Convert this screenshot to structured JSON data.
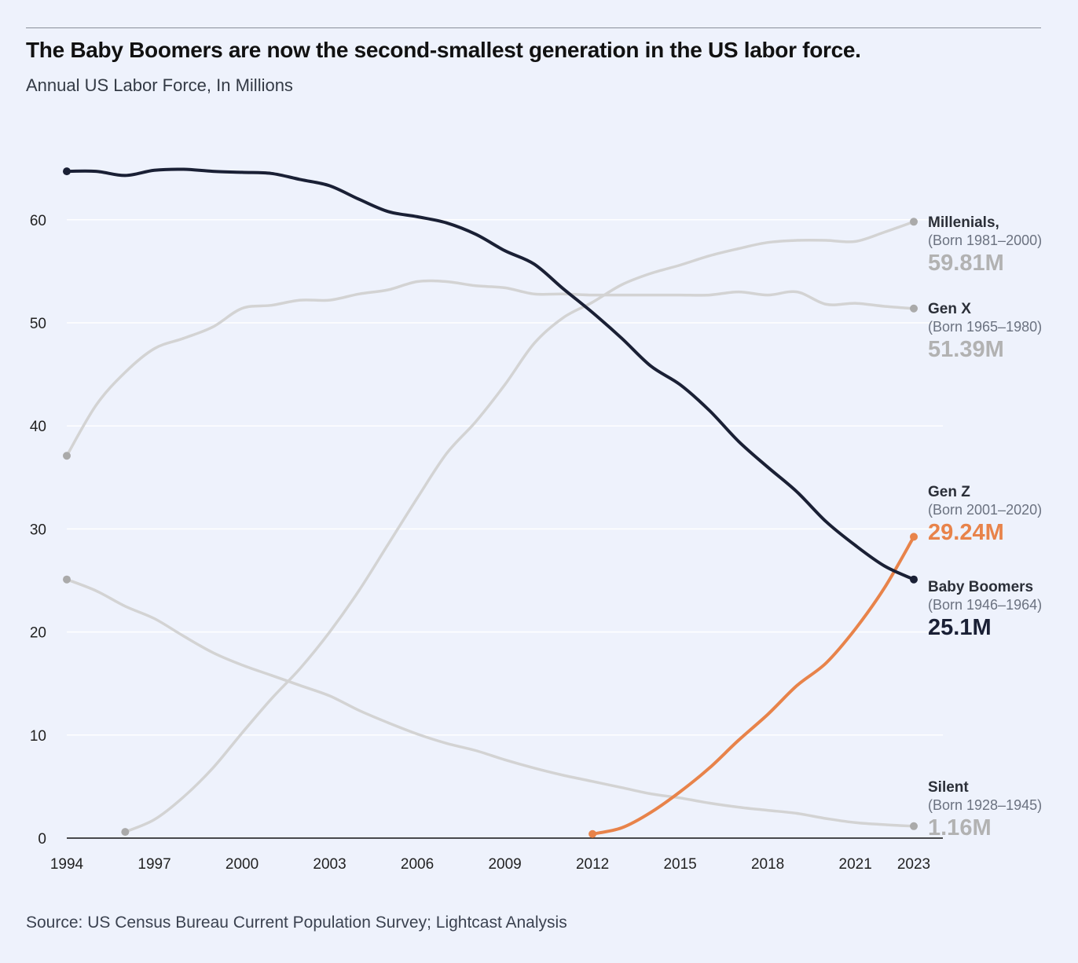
{
  "header": {
    "title": "The Baby Boomers are now the second-smallest generation in the US labor force.",
    "subtitle": "Annual US Labor Force, In Millions"
  },
  "footer": {
    "source": "Source: US Census Bureau Current Population Survey; Lightcast Analysis"
  },
  "colors": {
    "background": "#eef2fc",
    "highlight_dark": "#1a2035",
    "highlight_orange": "#e8834a",
    "muted_line": "#d3d3d3",
    "muted_label": "#b2b2b2"
  },
  "chart_data": {
    "type": "line",
    "title": "The Baby Boomers are now the second-smallest generation in the US labor force.",
    "subtitle": "Annual US Labor Force, In Millions",
    "xlim": [
      1994,
      2023
    ],
    "ylim": [
      0,
      65
    ],
    "x_ticks": [
      1994,
      1997,
      2000,
      2003,
      2006,
      2009,
      2012,
      2015,
      2018,
      2021,
      2023
    ],
    "y_ticks": [
      0,
      10,
      20,
      30,
      40,
      50,
      60
    ],
    "grid": true,
    "series": [
      {
        "name": "Millenials,",
        "born": "(Born 1981–2000)",
        "end_label": "59.81M",
        "style": "muted",
        "x": [
          1996,
          1997,
          1998,
          1999,
          2000,
          2001,
          2002,
          2003,
          2004,
          2005,
          2006,
          2007,
          2008,
          2009,
          2010,
          2011,
          2012,
          2013,
          2014,
          2015,
          2016,
          2017,
          2018,
          2019,
          2020,
          2021,
          2022,
          2023
        ],
        "values": [
          0.6,
          1.8,
          4.0,
          6.8,
          10.2,
          13.5,
          16.5,
          20.0,
          24.0,
          28.5,
          33.0,
          37.3,
          40.4,
          44.0,
          48.0,
          50.5,
          52.0,
          53.7,
          54.8,
          55.6,
          56.5,
          57.2,
          57.8,
          58.0,
          58.0,
          57.9,
          58.8,
          59.81
        ]
      },
      {
        "name": "Gen X",
        "born": "(Born 1965–1980)",
        "end_label": "51.39M",
        "style": "muted",
        "x": [
          1994,
          1995,
          1996,
          1997,
          1998,
          1999,
          2000,
          2001,
          2002,
          2003,
          2004,
          2005,
          2006,
          2007,
          2008,
          2009,
          2010,
          2011,
          2012,
          2013,
          2014,
          2015,
          2016,
          2017,
          2018,
          2019,
          2020,
          2021,
          2022,
          2023
        ],
        "values": [
          37.1,
          42.0,
          45.2,
          47.5,
          48.5,
          49.6,
          51.4,
          51.7,
          52.2,
          52.2,
          52.8,
          53.2,
          54.0,
          54.0,
          53.6,
          53.4,
          52.8,
          52.8,
          52.7,
          52.7,
          52.7,
          52.7,
          52.7,
          53.0,
          52.7,
          53.0,
          51.8,
          51.9,
          51.6,
          51.39
        ]
      },
      {
        "name": "Silent",
        "born": "(Born 1928–1945)",
        "end_label": "1.16M",
        "style": "muted",
        "x": [
          1994,
          1995,
          1996,
          1997,
          1998,
          1999,
          2000,
          2001,
          2002,
          2003,
          2004,
          2005,
          2006,
          2007,
          2008,
          2009,
          2010,
          2011,
          2012,
          2013,
          2014,
          2015,
          2016,
          2017,
          2018,
          2019,
          2020,
          2021,
          2022,
          2023
        ],
        "values": [
          25.1,
          24.0,
          22.5,
          21.3,
          19.6,
          18.0,
          16.8,
          15.8,
          14.8,
          13.8,
          12.4,
          11.2,
          10.1,
          9.2,
          8.5,
          7.6,
          6.8,
          6.1,
          5.5,
          4.9,
          4.3,
          3.9,
          3.4,
          3.0,
          2.7,
          2.4,
          1.9,
          1.5,
          1.3,
          1.16
        ]
      },
      {
        "name": "Baby Boomers",
        "born": "(Born 1946–1964)",
        "end_label": "25.1M",
        "style": "dark",
        "x": [
          1994,
          1995,
          1996,
          1997,
          1998,
          1999,
          2000,
          2001,
          2002,
          2003,
          2004,
          2005,
          2006,
          2007,
          2008,
          2009,
          2010,
          2011,
          2012,
          2013,
          2014,
          2015,
          2016,
          2017,
          2018,
          2019,
          2020,
          2021,
          2022,
          2023
        ],
        "values": [
          64.7,
          64.7,
          64.3,
          64.8,
          64.9,
          64.7,
          64.6,
          64.5,
          63.9,
          63.3,
          62.0,
          60.8,
          60.3,
          59.7,
          58.6,
          57.0,
          55.7,
          53.3,
          51.0,
          48.5,
          45.8,
          44.0,
          41.5,
          38.5,
          36.0,
          33.6,
          30.7,
          28.4,
          26.4,
          25.1
        ]
      },
      {
        "name": "Gen Z",
        "born": "(Born 2001–2020)",
        "end_label": "29.24M",
        "style": "orange",
        "x": [
          2012,
          2013,
          2014,
          2015,
          2016,
          2017,
          2018,
          2019,
          2020,
          2021,
          2022,
          2023
        ],
        "values": [
          0.4,
          1.0,
          2.5,
          4.5,
          6.8,
          9.5,
          12.0,
          14.8,
          17.0,
          20.3,
          24.3,
          29.24
        ]
      }
    ]
  }
}
